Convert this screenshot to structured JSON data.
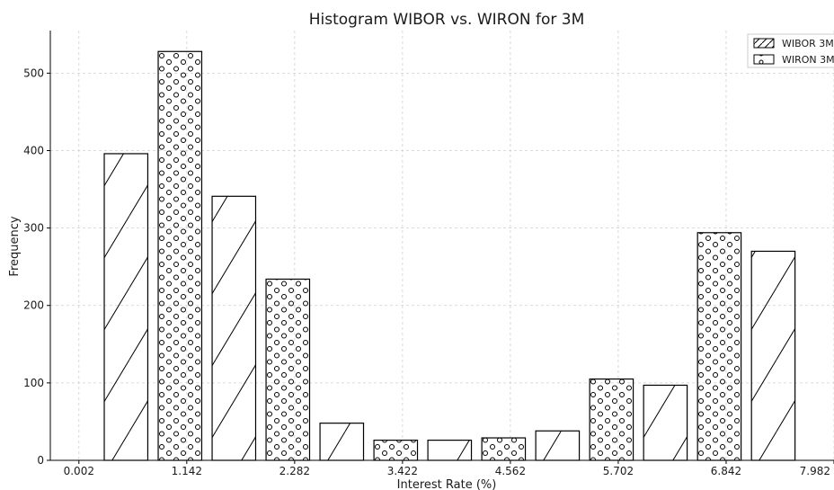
{
  "chart_data": {
    "type": "bar",
    "title": "Histogram WIBOR vs. WIRON for 3M",
    "xlabel": "Interest Rate (%)",
    "ylabel": "Frequency",
    "xlim": [
      -0.3,
      7.982
    ],
    "ylim": [
      0,
      555
    ],
    "xticks": [
      0.002,
      1.142,
      2.282,
      3.422,
      4.562,
      5.702,
      6.842,
      7.982
    ],
    "xtick_labels": [
      "0.002",
      "1.142",
      "2.282",
      "3.422",
      "4.562",
      "5.702",
      "6.842",
      "7.982"
    ],
    "yticks": [
      0,
      100,
      200,
      300,
      400,
      500
    ],
    "grid": true,
    "legend_position": "top-right",
    "series": [
      {
        "name": "WIBOR 3M",
        "hatch": "diagonal"
      },
      {
        "name": "WIRON 3M",
        "hatch": "circles"
      }
    ],
    "bars": [
      {
        "x": 0.5,
        "value": 396,
        "series": "WIBOR 3M"
      },
      {
        "x": 1.07,
        "value": 528,
        "series": "WIRON 3M"
      },
      {
        "x": 1.64,
        "value": 341,
        "series": "WIBOR 3M"
      },
      {
        "x": 2.21,
        "value": 234,
        "series": "WIRON 3M"
      },
      {
        "x": 2.78,
        "value": 48,
        "series": "WIBOR 3M"
      },
      {
        "x": 3.35,
        "value": 26,
        "series": "WIRON 3M"
      },
      {
        "x": 3.92,
        "value": 26,
        "series": "WIBOR 3M"
      },
      {
        "x": 4.49,
        "value": 29,
        "series": "WIRON 3M"
      },
      {
        "x": 5.06,
        "value": 38,
        "series": "WIBOR 3M"
      },
      {
        "x": 5.63,
        "value": 105,
        "series": "WIRON 3M"
      },
      {
        "x": 6.2,
        "value": 97,
        "series": "WIBOR 3M"
      },
      {
        "x": 6.77,
        "value": 294,
        "series": "WIRON 3M"
      },
      {
        "x": 7.34,
        "value": 270,
        "series": "WIBOR 3M"
      }
    ],
    "bar_width": 0.46
  }
}
